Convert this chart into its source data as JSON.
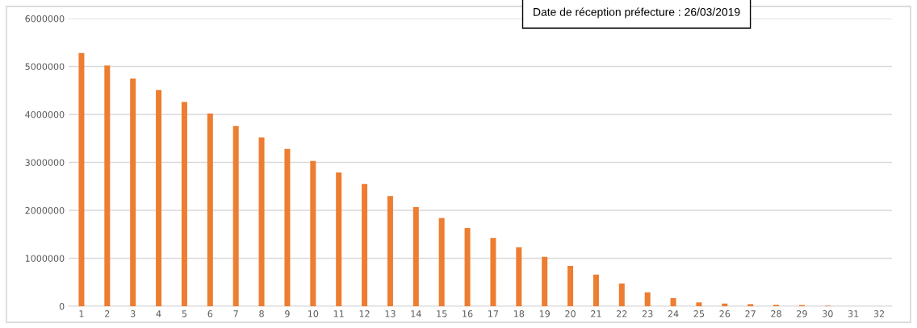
{
  "chart_data": {
    "type": "bar",
    "categories": [
      "1",
      "2",
      "3",
      "4",
      "5",
      "6",
      "7",
      "8",
      "9",
      "10",
      "11",
      "12",
      "13",
      "14",
      "15",
      "16",
      "17",
      "18",
      "19",
      "20",
      "21",
      "22",
      "23",
      "24",
      "25",
      "26",
      "27",
      "28",
      "29",
      "30",
      "31",
      "32"
    ],
    "values": [
      5280000,
      5020000,
      4750000,
      4510000,
      4260000,
      4020000,
      3760000,
      3520000,
      3280000,
      3030000,
      2790000,
      2550000,
      2300000,
      2070000,
      1840000,
      1630000,
      1425000,
      1230000,
      1030000,
      840000,
      660000,
      475000,
      290000,
      170000,
      80000,
      56000,
      44000,
      30000,
      25000,
      12000,
      0,
      0
    ],
    "color": "#ed7d31",
    "ylim": [
      0,
      6000000
    ],
    "yticks": [
      0,
      1000000,
      2000000,
      3000000,
      4000000,
      5000000,
      6000000
    ],
    "grid": "y",
    "annotations": [
      "Date de réception préfecture : 26/03/2019"
    ]
  }
}
